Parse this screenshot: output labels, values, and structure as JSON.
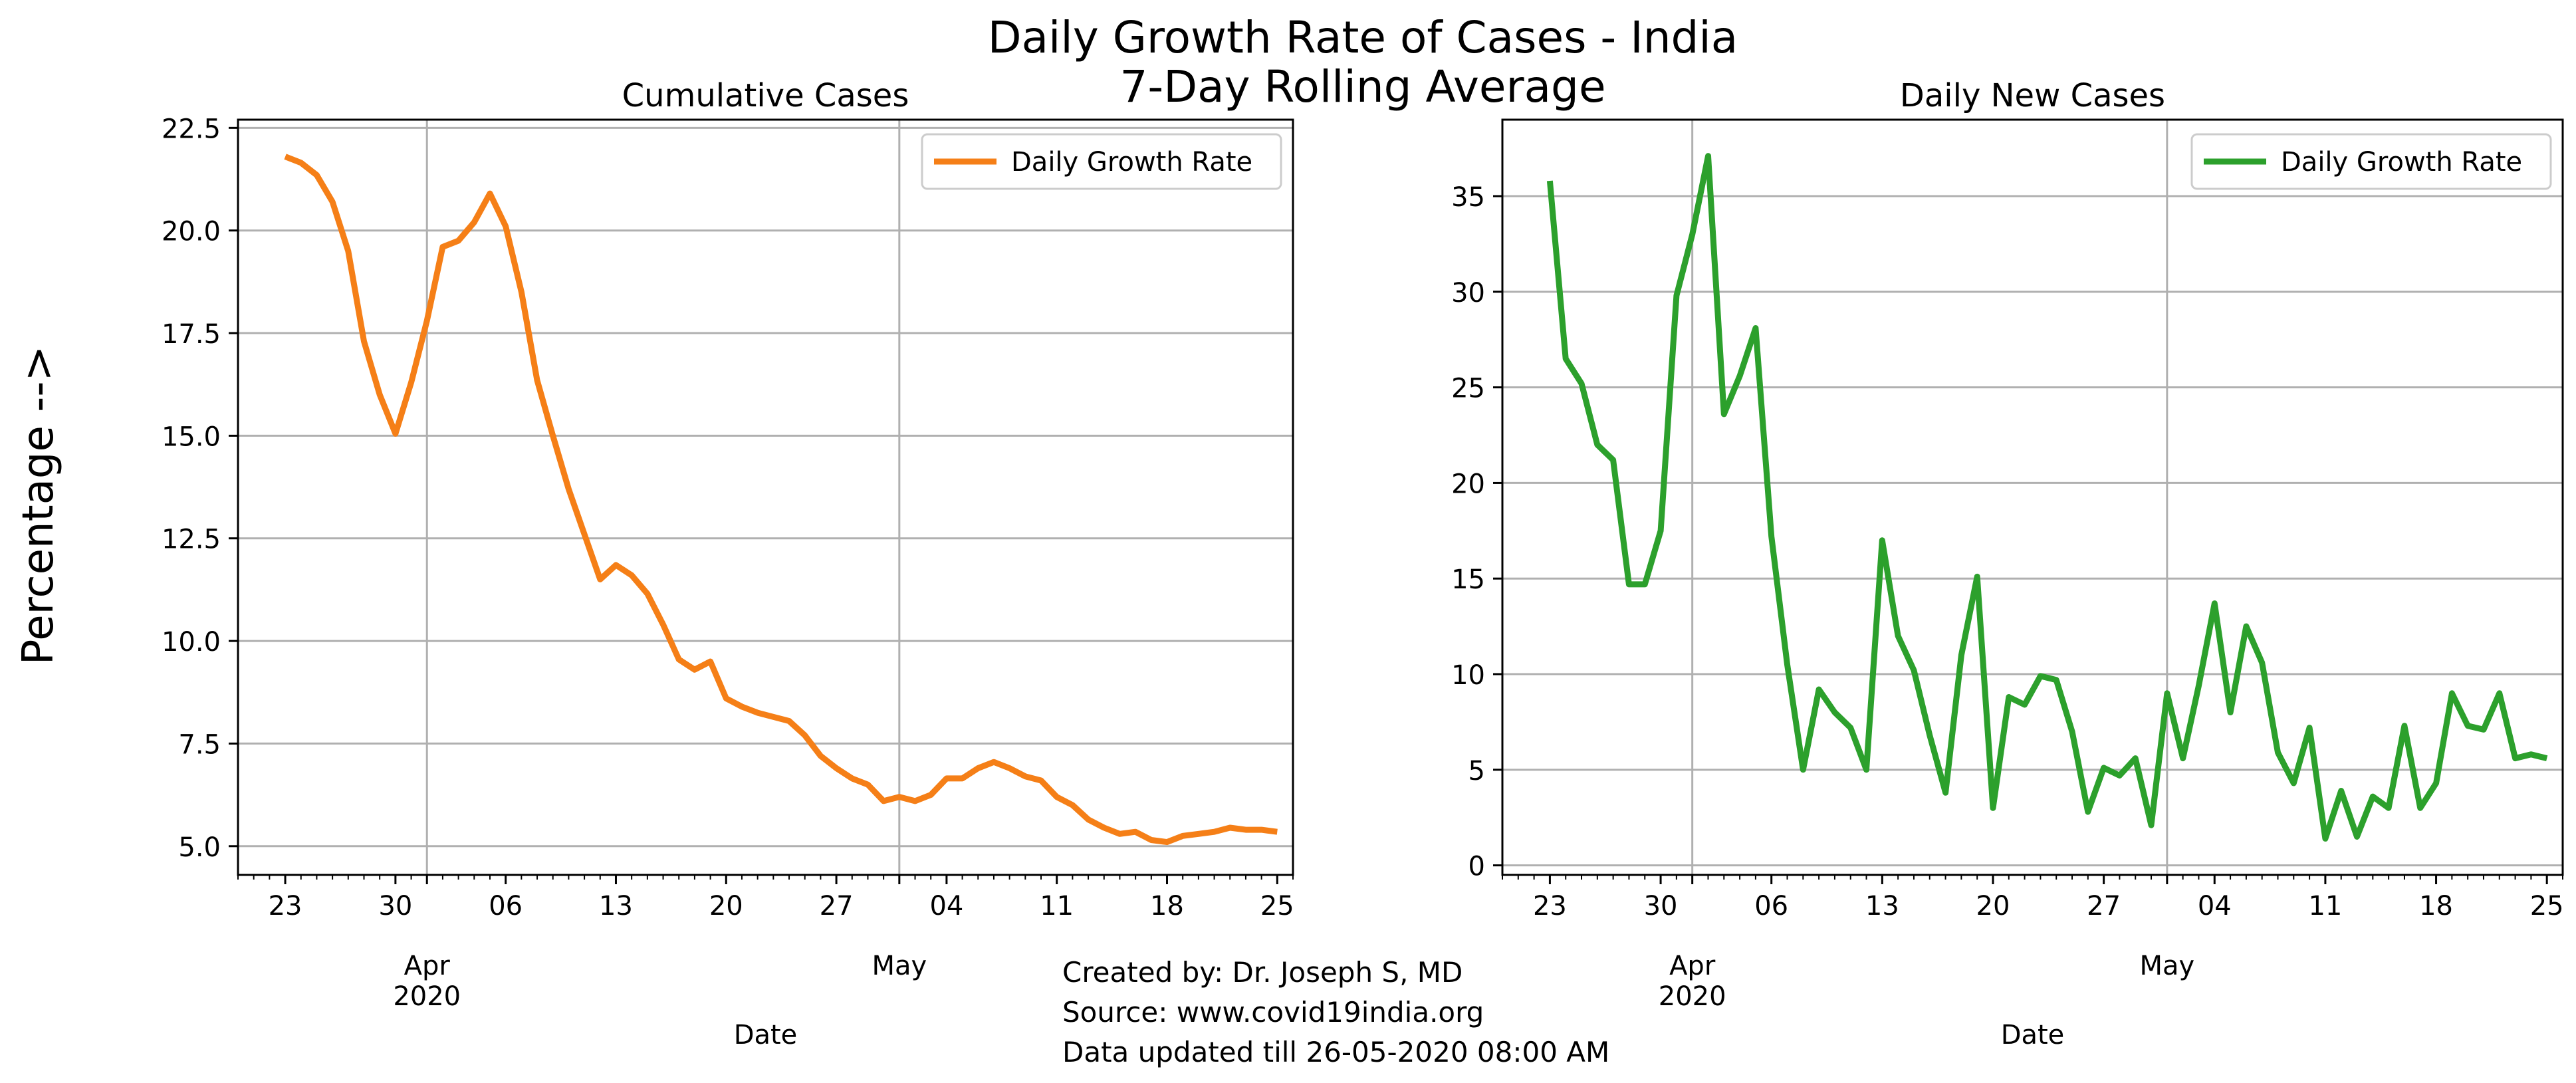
{
  "suptitle": {
    "line1": "Daily Growth Rate of Cases - India",
    "line2": "7-Day Rolling Average"
  },
  "ylabel": "Percentage -->",
  "credits": {
    "created_by": "Created by: Dr. Joseph S, MD",
    "source": "Source: www.covid19india.org",
    "updated": "Data updated till 26-05-2020 08:00 AM"
  },
  "chart_data": [
    {
      "type": "line",
      "title": "Cumulative Cases",
      "xlabel": "Date",
      "ylabel": "",
      "xlim": [
        "2020-03-20",
        "2020-05-26"
      ],
      "ylim": [
        4.3,
        22.7
      ],
      "yticks": [
        5.0,
        7.5,
        10.0,
        12.5,
        15.0,
        17.5,
        20.0,
        22.5
      ],
      "ytick_labels": [
        "5.0",
        "7.5",
        "10.0",
        "12.5",
        "15.0",
        "17.5",
        "20.0",
        "22.5"
      ],
      "xticks": [
        {
          "date": "2020-03-23",
          "label": "23"
        },
        {
          "date": "2020-03-30",
          "label": "30"
        },
        {
          "date": "2020-04-06",
          "label": "06"
        },
        {
          "date": "2020-04-13",
          "label": "13"
        },
        {
          "date": "2020-04-20",
          "label": "20"
        },
        {
          "date": "2020-04-27",
          "label": "27"
        },
        {
          "date": "2020-05-04",
          "label": "04"
        },
        {
          "date": "2020-05-11",
          "label": "11"
        },
        {
          "date": "2020-05-18",
          "label": "18"
        },
        {
          "date": "2020-05-25",
          "label": "25"
        }
      ],
      "major_ticks": [
        {
          "date": "2020-04-01",
          "label": "Apr\n2020"
        },
        {
          "date": "2020-05-01",
          "label": "May"
        }
      ],
      "grid": true,
      "legend_position": "top-right",
      "color": "#f57f17",
      "series": [
        {
          "name": "Daily Growth Rate",
          "x": [
            "2020-03-23",
            "2020-03-24",
            "2020-03-25",
            "2020-03-26",
            "2020-03-27",
            "2020-03-28",
            "2020-03-29",
            "2020-03-30",
            "2020-03-31",
            "2020-04-01",
            "2020-04-02",
            "2020-04-03",
            "2020-04-04",
            "2020-04-05",
            "2020-04-06",
            "2020-04-07",
            "2020-04-08",
            "2020-04-09",
            "2020-04-10",
            "2020-04-11",
            "2020-04-12",
            "2020-04-13",
            "2020-04-14",
            "2020-04-15",
            "2020-04-16",
            "2020-04-17",
            "2020-04-18",
            "2020-04-19",
            "2020-04-20",
            "2020-04-21",
            "2020-04-22",
            "2020-04-23",
            "2020-04-24",
            "2020-04-25",
            "2020-04-26",
            "2020-04-27",
            "2020-04-28",
            "2020-04-29",
            "2020-04-30",
            "2020-05-01",
            "2020-05-02",
            "2020-05-03",
            "2020-05-04",
            "2020-05-05",
            "2020-05-06",
            "2020-05-07",
            "2020-05-08",
            "2020-05-09",
            "2020-05-10",
            "2020-05-11",
            "2020-05-12",
            "2020-05-13",
            "2020-05-14",
            "2020-05-15",
            "2020-05-16",
            "2020-05-17",
            "2020-05-18",
            "2020-05-19",
            "2020-05-20",
            "2020-05-21",
            "2020-05-22",
            "2020-05-23",
            "2020-05-24",
            "2020-05-25"
          ],
          "values": [
            21.8,
            21.65,
            21.35,
            20.7,
            19.5,
            17.3,
            16.0,
            15.05,
            16.3,
            17.8,
            19.6,
            19.75,
            20.2,
            20.9,
            20.1,
            18.5,
            16.35,
            15.0,
            13.7,
            12.6,
            11.5,
            11.85,
            11.6,
            11.15,
            10.4,
            9.55,
            9.3,
            9.5,
            8.6,
            8.4,
            8.25,
            8.15,
            8.05,
            7.7,
            7.2,
            6.9,
            6.65,
            6.5,
            6.1,
            6.2,
            6.1,
            6.25,
            6.65,
            6.65,
            6.9,
            7.05,
            6.9,
            6.7,
            6.6,
            6.2,
            6.0,
            5.65,
            5.45,
            5.3,
            5.35,
            5.15,
            5.1,
            5.25,
            5.3,
            5.35,
            5.45,
            5.4,
            5.4,
            5.35
          ]
        }
      ]
    },
    {
      "type": "line",
      "title": "Daily New Cases",
      "xlabel": "Date",
      "ylabel": "",
      "xlim": [
        "2020-03-20",
        "2020-05-26"
      ],
      "ylim": [
        -0.5,
        39.0
      ],
      "yticks": [
        0,
        5,
        10,
        15,
        20,
        25,
        30,
        35
      ],
      "ytick_labels": [
        "0",
        "5",
        "10",
        "15",
        "20",
        "25",
        "30",
        "35"
      ],
      "xticks": [
        {
          "date": "2020-03-23",
          "label": "23"
        },
        {
          "date": "2020-03-30",
          "label": "30"
        },
        {
          "date": "2020-04-06",
          "label": "06"
        },
        {
          "date": "2020-04-13",
          "label": "13"
        },
        {
          "date": "2020-04-20",
          "label": "20"
        },
        {
          "date": "2020-04-27",
          "label": "27"
        },
        {
          "date": "2020-05-04",
          "label": "04"
        },
        {
          "date": "2020-05-11",
          "label": "11"
        },
        {
          "date": "2020-05-18",
          "label": "18"
        },
        {
          "date": "2020-05-25",
          "label": "25"
        }
      ],
      "major_ticks": [
        {
          "date": "2020-04-01",
          "label": "Apr\n2020"
        },
        {
          "date": "2020-05-01",
          "label": "May"
        }
      ],
      "grid": true,
      "legend_position": "top-right",
      "color": "#2ca02c",
      "series": [
        {
          "name": "Daily Growth Rate",
          "x": [
            "2020-03-23",
            "2020-03-24",
            "2020-03-25",
            "2020-03-26",
            "2020-03-27",
            "2020-03-28",
            "2020-03-29",
            "2020-03-30",
            "2020-03-31",
            "2020-04-01",
            "2020-04-02",
            "2020-04-03",
            "2020-04-04",
            "2020-04-05",
            "2020-04-06",
            "2020-04-07",
            "2020-04-08",
            "2020-04-09",
            "2020-04-10",
            "2020-04-11",
            "2020-04-12",
            "2020-04-13",
            "2020-04-14",
            "2020-04-15",
            "2020-04-16",
            "2020-04-17",
            "2020-04-18",
            "2020-04-19",
            "2020-04-20",
            "2020-04-21",
            "2020-04-22",
            "2020-04-23",
            "2020-04-24",
            "2020-04-25",
            "2020-04-26",
            "2020-04-27",
            "2020-04-28",
            "2020-04-29",
            "2020-04-30",
            "2020-05-01",
            "2020-05-02",
            "2020-05-03",
            "2020-05-04",
            "2020-05-05",
            "2020-05-06",
            "2020-05-07",
            "2020-05-08",
            "2020-05-09",
            "2020-05-10",
            "2020-05-11",
            "2020-05-12",
            "2020-05-13",
            "2020-05-14",
            "2020-05-15",
            "2020-05-16",
            "2020-05-17",
            "2020-05-18",
            "2020-05-19",
            "2020-05-20",
            "2020-05-21",
            "2020-05-22",
            "2020-05-23",
            "2020-05-24",
            "2020-05-25"
          ],
          "values": [
            35.8,
            26.5,
            25.2,
            22.0,
            21.2,
            14.7,
            14.7,
            17.5,
            29.8,
            33.0,
            37.1,
            23.6,
            25.6,
            28.1,
            17.2,
            10.5,
            5.0,
            9.2,
            8.0,
            7.2,
            5.0,
            17.0,
            12.0,
            10.2,
            6.8,
            3.8,
            11.0,
            15.1,
            3.0,
            8.8,
            8.4,
            9.9,
            9.7,
            7.0,
            2.8,
            5.1,
            4.7,
            5.6,
            2.1,
            9.0,
            5.6,
            9.4,
            13.7,
            8.0,
            12.5,
            10.6,
            5.9,
            4.3,
            7.2,
            1.4,
            3.9,
            1.5,
            3.6,
            3.0,
            7.3,
            3.0,
            4.3,
            9.0,
            7.3,
            7.1,
            9.0,
            5.6,
            5.8,
            5.6
          ]
        }
      ]
    }
  ]
}
